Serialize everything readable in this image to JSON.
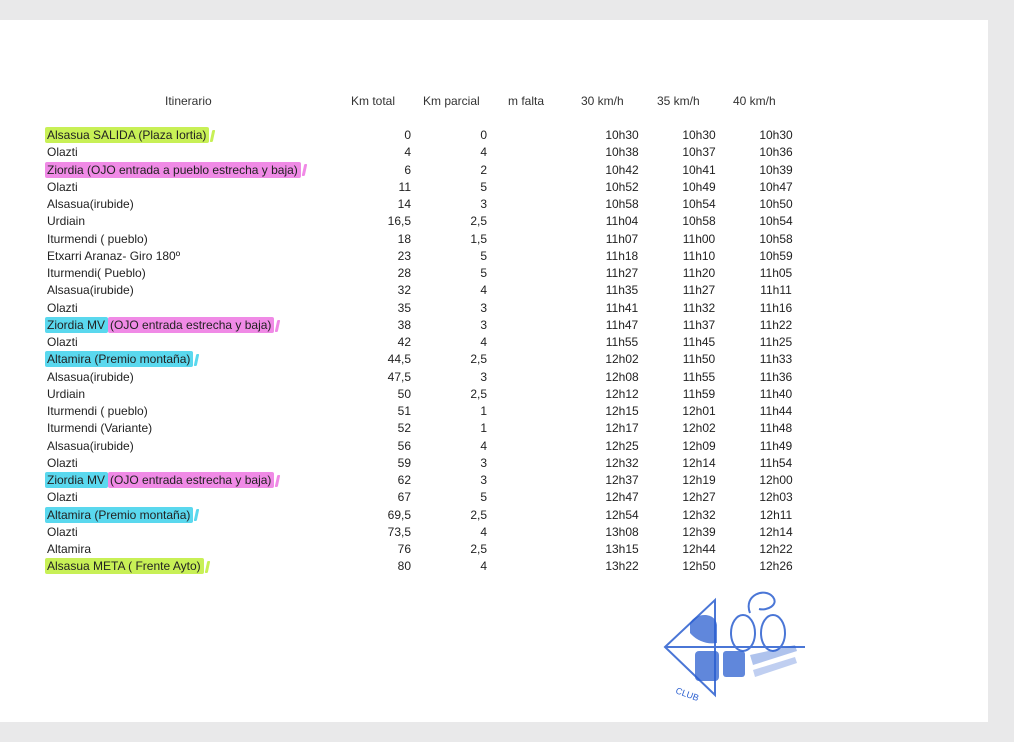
{
  "headers": {
    "itinerario": "Itinerario",
    "km_total": "Km total",
    "km_parcial": "Km parcial",
    "m_falta": "m falta",
    "v30": "30 km/h",
    "v35": "35 km/h",
    "v40": "40 km/h"
  },
  "highlight_colors": {
    "green": "#c8f056",
    "pink": "#f08ae6",
    "cyan": "#5ad8ee"
  },
  "rows": [
    {
      "segments": [
        {
          "text": "Alsasua SALIDA (Plaza Iortia)",
          "hl": "green"
        }
      ],
      "km_total": "0",
      "km_parcial": "0",
      "t30": "10h30",
      "t35": "10h30",
      "t40": "10h30"
    },
    {
      "segments": [
        {
          "text": "Olazti"
        }
      ],
      "km_total": "4",
      "km_parcial": "4",
      "t30": "10h38",
      "t35": "10h37",
      "t40": "10h36"
    },
    {
      "segments": [
        {
          "text": "Ziordia (OJO entrada a pueblo estrecha y baja)",
          "hl": "pink"
        }
      ],
      "km_total": "6",
      "km_parcial": "2",
      "t30": "10h42",
      "t35": "10h41",
      "t40": "10h39"
    },
    {
      "segments": [
        {
          "text": "Olazti"
        }
      ],
      "km_total": "11",
      "km_parcial": "5",
      "t30": "10h52",
      "t35": "10h49",
      "t40": "10h47"
    },
    {
      "segments": [
        {
          "text": "Alsasua(irubide)"
        }
      ],
      "km_total": "14",
      "km_parcial": "3",
      "t30": "10h58",
      "t35": "10h54",
      "t40": "10h50"
    },
    {
      "segments": [
        {
          "text": "Urdiain"
        }
      ],
      "km_total": "16,5",
      "km_parcial": "2,5",
      "t30": "11h04",
      "t35": "10h58",
      "t40": "10h54"
    },
    {
      "segments": [
        {
          "text": "Iturmendi ( pueblo)"
        }
      ],
      "km_total": "18",
      "km_parcial": "1,5",
      "t30": "11h07",
      "t35": "11h00",
      "t40": "10h58"
    },
    {
      "segments": [
        {
          "text": "Etxarri Aranaz- Giro 180º"
        }
      ],
      "km_total": "23",
      "km_parcial": "5",
      "t30": "11h18",
      "t35": "11h10",
      "t40": "10h59"
    },
    {
      "segments": [
        {
          "text": "Iturmendi( Pueblo)"
        }
      ],
      "km_total": "28",
      "km_parcial": "5",
      "t30": "11h27",
      "t35": "11h20",
      "t40": "11h05"
    },
    {
      "segments": [
        {
          "text": "Alsasua(irubide)"
        }
      ],
      "km_total": "32",
      "km_parcial": "4",
      "t30": "11h35",
      "t35": "11h27",
      "t40": "11h11"
    },
    {
      "segments": [
        {
          "text": "Olazti"
        }
      ],
      "km_total": "35",
      "km_parcial": "3",
      "t30": "11h41",
      "t35": "11h32",
      "t40": "11h16"
    },
    {
      "segments": [
        {
          "text": "Ziordia MV",
          "hl": "cyan"
        },
        {
          "text": "(OJO entrada  estrecha y baja)",
          "hl": "pink"
        }
      ],
      "km_total": "38",
      "km_parcial": "3",
      "t30": "11h47",
      "t35": "11h37",
      "t40": "11h22"
    },
    {
      "segments": [
        {
          "text": "Olazti"
        }
      ],
      "km_total": "42",
      "km_parcial": "4",
      "t30": "11h55",
      "t35": "11h45",
      "t40": "11h25"
    },
    {
      "segments": [
        {
          "text": "Altamira (Premio montaña)",
          "hl": "cyan"
        }
      ],
      "km_total": "44,5",
      "km_parcial": "2,5",
      "t30": "12h02",
      "t35": "11h50",
      "t40": "11h33"
    },
    {
      "segments": [
        {
          "text": "Alsasua(irubide)"
        }
      ],
      "km_total": "47,5",
      "km_parcial": "3",
      "t30": "12h08",
      "t35": "11h55",
      "t40": "11h36"
    },
    {
      "segments": [
        {
          "text": "Urdiain"
        }
      ],
      "km_total": "50",
      "km_parcial": "2,5",
      "t30": "12h12",
      "t35": "11h59",
      "t40": "11h40"
    },
    {
      "segments": [
        {
          "text": "Iturmendi ( pueblo)"
        }
      ],
      "km_total": "51",
      "km_parcial": "1",
      "t30": "12h15",
      "t35": "12h01",
      "t40": "11h44"
    },
    {
      "segments": [
        {
          "text": "Iturmendi  (Variante)"
        }
      ],
      "km_total": "52",
      "km_parcial": "1",
      "t30": "12h17",
      "t35": "12h02",
      "t40": "11h48"
    },
    {
      "segments": [
        {
          "text": "Alsasua(irubide)"
        }
      ],
      "km_total": "56",
      "km_parcial": "4",
      "t30": "12h25",
      "t35": "12h09",
      "t40": "11h49"
    },
    {
      "segments": [
        {
          "text": "Olazti"
        }
      ],
      "km_total": "59",
      "km_parcial": "3",
      "t30": "12h32",
      "t35": "12h14",
      "t40": "11h54"
    },
    {
      "segments": [
        {
          "text": "Ziordia MV",
          "hl": "cyan"
        },
        {
          "text": "(OJO entrada  estrecha y baja)",
          "hl": "pink"
        }
      ],
      "km_total": "62",
      "km_parcial": "3",
      "t30": "12h37",
      "t35": "12h19",
      "t40": "12h00"
    },
    {
      "segments": [
        {
          "text": "Olazti"
        }
      ],
      "km_total": "67",
      "km_parcial": "5",
      "t30": "12h47",
      "t35": "12h27",
      "t40": "12h03"
    },
    {
      "segments": [
        {
          "text": "Altamira (Premio montaña)",
          "hl": "cyan"
        }
      ],
      "km_total": "69,5",
      "km_parcial": "2,5",
      "t30": "12h54",
      "t35": "12h32",
      "t40": "12h11"
    },
    {
      "segments": [
        {
          "text": "Olazti"
        }
      ],
      "km_total": "73,5",
      "km_parcial": "4",
      "t30": "13h08",
      "t35": "12h39",
      "t40": "12h14"
    },
    {
      "segments": [
        {
          "text": "Altamira"
        }
      ],
      "km_total": "76",
      "km_parcial": "2,5",
      "t30": "13h15",
      "t35": "12h44",
      "t40": "12h22"
    },
    {
      "segments": [
        {
          "text": "Alsasua META ( Frente Ayto)",
          "hl": "green"
        }
      ],
      "km_total": "80",
      "km_parcial": "4",
      "t30": "13h22",
      "t35": "12h50",
      "t40": "12h26"
    }
  ],
  "stamp": {
    "text": "CLUB",
    "color": "#2b5fd0"
  }
}
